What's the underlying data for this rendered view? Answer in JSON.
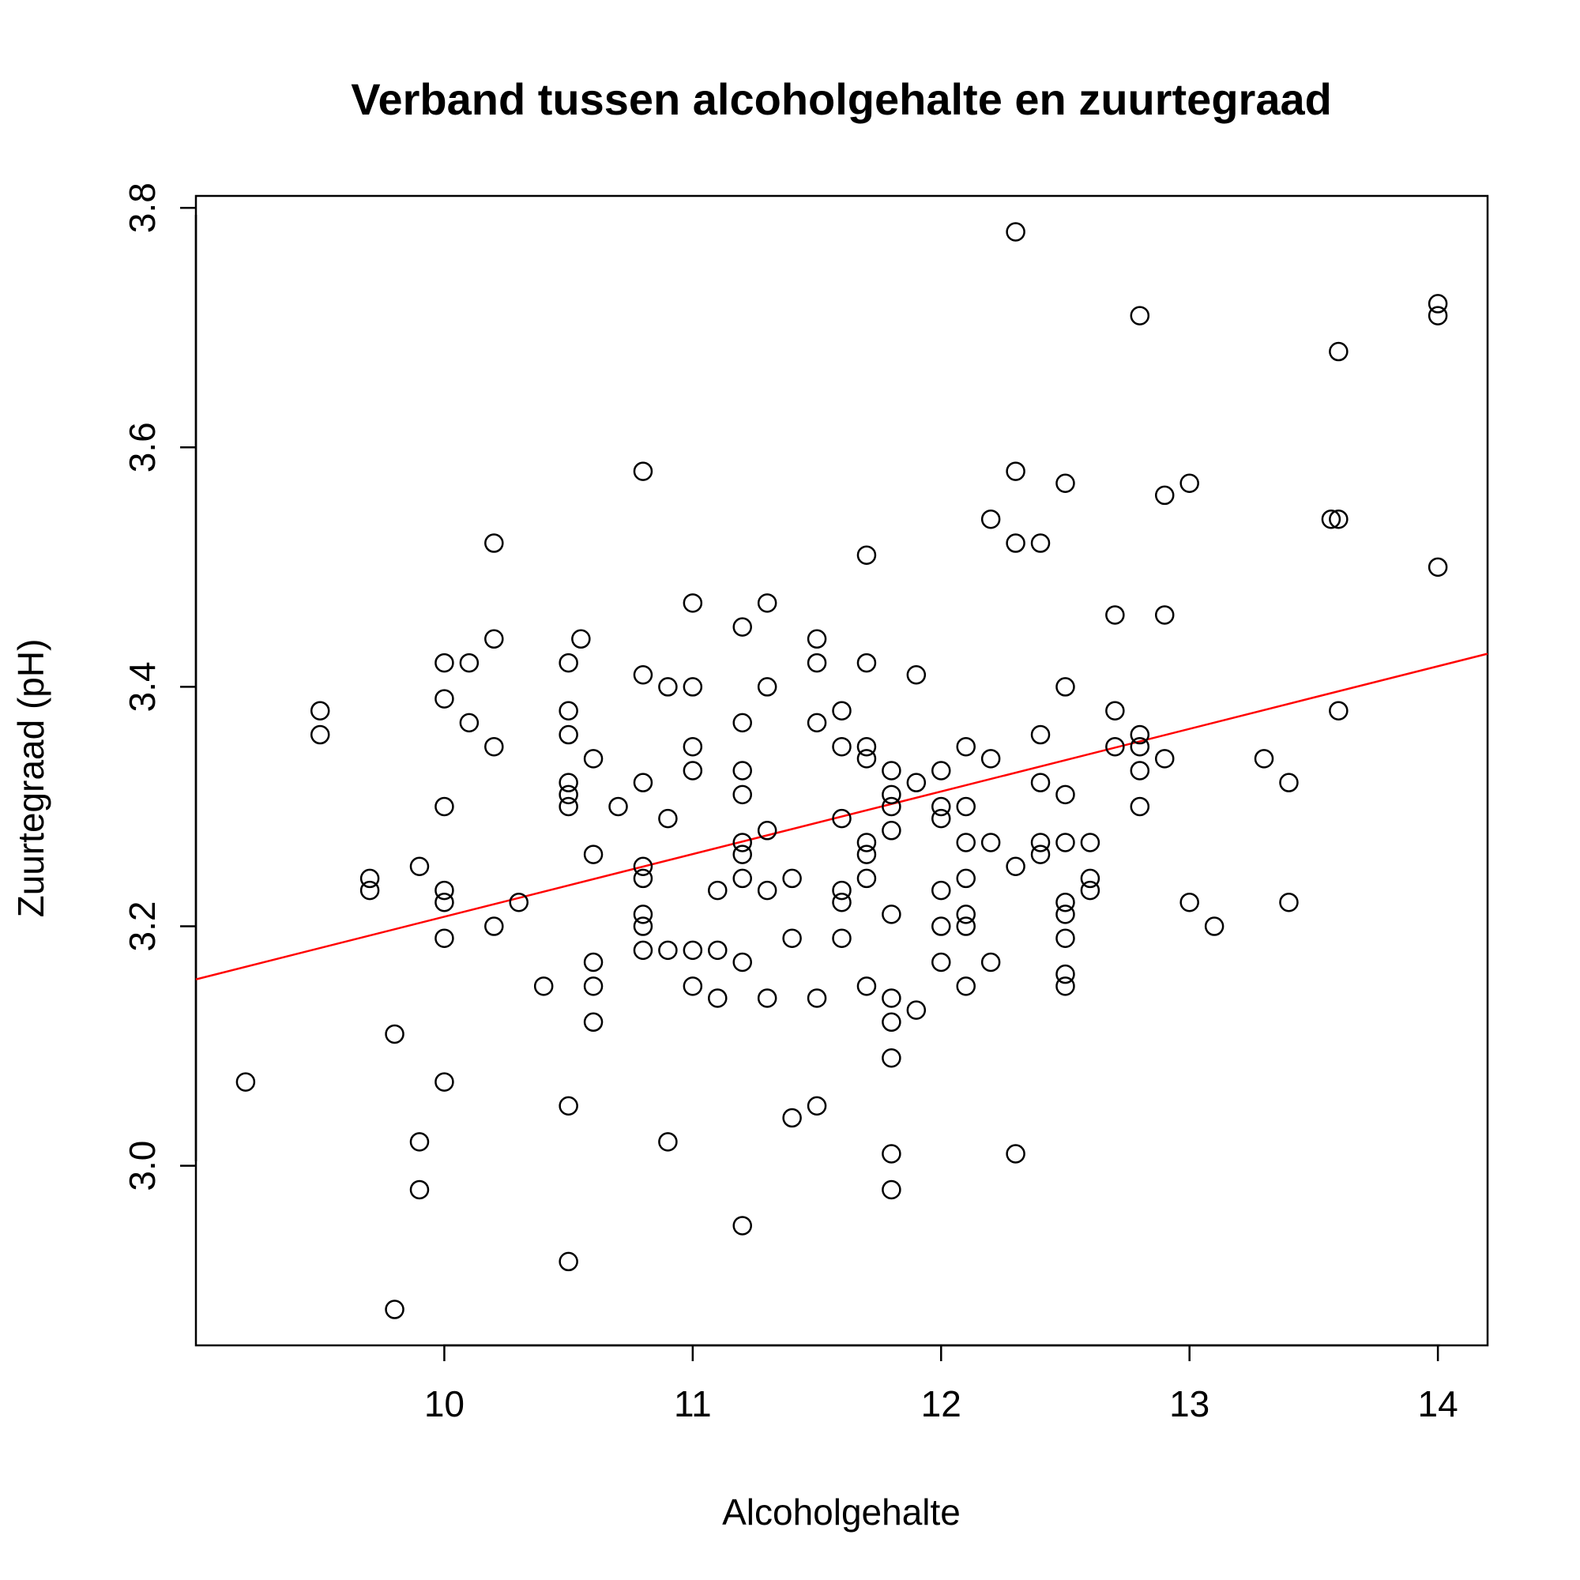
{
  "chart_data": {
    "type": "scatter",
    "title": "Verband tussen alcoholgehalte en zuurtegraad",
    "xlabel": "Alcoholgehalte",
    "ylabel": "Zuurtegraad (pH)",
    "xlim": [
      9.0,
      14.2
    ],
    "ylim": [
      2.85,
      3.81
    ],
    "xticks": [
      10,
      11,
      12,
      13,
      14
    ],
    "xtick_labels": [
      "10",
      "11",
      "12",
      "13",
      "14"
    ],
    "yticks": [
      3.0,
      3.2,
      3.4,
      3.6,
      3.8
    ],
    "ytick_labels": [
      "3.0",
      "3.2",
      "3.4",
      "3.6",
      "3.8"
    ],
    "grid": false,
    "fit_line": {
      "color": "#ff0000",
      "intercept": 2.685,
      "slope": 0.0523
    },
    "point_color": "#000000",
    "points": [
      [
        9.2,
        3.07
      ],
      [
        9.5,
        3.38
      ],
      [
        9.5,
        3.36
      ],
      [
        9.7,
        3.24
      ],
      [
        9.7,
        3.23
      ],
      [
        9.8,
        3.11
      ],
      [
        9.8,
        2.88
      ],
      [
        9.9,
        3.25
      ],
      [
        9.9,
        3.02
      ],
      [
        9.9,
        2.98
      ],
      [
        10.0,
        3.42
      ],
      [
        10.0,
        3.39
      ],
      [
        10.0,
        3.3
      ],
      [
        10.0,
        3.23
      ],
      [
        10.0,
        3.22
      ],
      [
        10.0,
        3.19
      ],
      [
        10.0,
        3.07
      ],
      [
        10.1,
        3.42
      ],
      [
        10.1,
        3.37
      ],
      [
        10.2,
        3.52
      ],
      [
        10.2,
        3.44
      ],
      [
        10.2,
        3.35
      ],
      [
        10.2,
        3.2
      ],
      [
        10.3,
        3.22
      ],
      [
        10.4,
        3.15
      ],
      [
        10.5,
        3.42
      ],
      [
        10.5,
        3.38
      ],
      [
        10.5,
        3.36
      ],
      [
        10.5,
        3.32
      ],
      [
        10.5,
        3.31
      ],
      [
        10.5,
        3.3
      ],
      [
        10.5,
        3.05
      ],
      [
        10.5,
        2.92
      ],
      [
        10.55,
        3.44
      ],
      [
        10.6,
        3.34
      ],
      [
        10.6,
        3.26
      ],
      [
        10.6,
        3.17
      ],
      [
        10.6,
        3.15
      ],
      [
        10.6,
        3.12
      ],
      [
        10.7,
        3.3
      ],
      [
        10.8,
        3.58
      ],
      [
        10.8,
        3.41
      ],
      [
        10.8,
        3.32
      ],
      [
        10.8,
        3.25
      ],
      [
        10.8,
        3.24
      ],
      [
        10.8,
        3.21
      ],
      [
        10.8,
        3.2
      ],
      [
        10.8,
        3.18
      ],
      [
        10.9,
        3.4
      ],
      [
        10.9,
        3.29
      ],
      [
        10.9,
        3.18
      ],
      [
        10.9,
        3.02
      ],
      [
        11.0,
        3.47
      ],
      [
        11.0,
        3.4
      ],
      [
        11.0,
        3.35
      ],
      [
        11.0,
        3.33
      ],
      [
        11.0,
        3.18
      ],
      [
        11.0,
        3.15
      ],
      [
        11.1,
        3.23
      ],
      [
        11.1,
        3.18
      ],
      [
        11.1,
        3.14
      ],
      [
        11.2,
        3.45
      ],
      [
        11.2,
        3.37
      ],
      [
        11.2,
        3.33
      ],
      [
        11.2,
        3.31
      ],
      [
        11.2,
        3.27
      ],
      [
        11.2,
        3.26
      ],
      [
        11.2,
        3.24
      ],
      [
        11.2,
        3.17
      ],
      [
        11.2,
        2.95
      ],
      [
        11.3,
        3.47
      ],
      [
        11.3,
        3.4
      ],
      [
        11.3,
        3.28
      ],
      [
        11.3,
        3.23
      ],
      [
        11.3,
        3.14
      ],
      [
        11.4,
        3.24
      ],
      [
        11.4,
        3.19
      ],
      [
        11.4,
        3.04
      ],
      [
        11.5,
        3.44
      ],
      [
        11.5,
        3.42
      ],
      [
        11.5,
        3.37
      ],
      [
        11.5,
        3.14
      ],
      [
        11.5,
        3.05
      ],
      [
        11.6,
        3.38
      ],
      [
        11.6,
        3.35
      ],
      [
        11.6,
        3.29
      ],
      [
        11.6,
        3.23
      ],
      [
        11.6,
        3.22
      ],
      [
        11.6,
        3.19
      ],
      [
        11.7,
        3.51
      ],
      [
        11.7,
        3.42
      ],
      [
        11.7,
        3.35
      ],
      [
        11.7,
        3.34
      ],
      [
        11.7,
        3.27
      ],
      [
        11.7,
        3.26
      ],
      [
        11.7,
        3.24
      ],
      [
        11.7,
        3.15
      ],
      [
        11.8,
        3.33
      ],
      [
        11.8,
        3.31
      ],
      [
        11.8,
        3.3
      ],
      [
        11.8,
        3.28
      ],
      [
        11.8,
        3.21
      ],
      [
        11.8,
        3.14
      ],
      [
        11.8,
        3.12
      ],
      [
        11.8,
        3.09
      ],
      [
        11.8,
        3.01
      ],
      [
        11.8,
        2.98
      ],
      [
        11.9,
        3.41
      ],
      [
        11.9,
        3.32
      ],
      [
        11.9,
        3.13
      ],
      [
        12.0,
        3.33
      ],
      [
        12.0,
        3.3
      ],
      [
        12.0,
        3.29
      ],
      [
        12.0,
        3.23
      ],
      [
        12.0,
        3.2
      ],
      [
        12.0,
        3.17
      ],
      [
        12.1,
        3.35
      ],
      [
        12.1,
        3.3
      ],
      [
        12.1,
        3.27
      ],
      [
        12.1,
        3.24
      ],
      [
        12.1,
        3.21
      ],
      [
        12.1,
        3.2
      ],
      [
        12.1,
        3.15
      ],
      [
        12.2,
        3.54
      ],
      [
        12.2,
        3.34
      ],
      [
        12.2,
        3.27
      ],
      [
        12.2,
        3.17
      ],
      [
        12.3,
        3.78
      ],
      [
        12.3,
        3.58
      ],
      [
        12.3,
        3.52
      ],
      [
        12.3,
        3.25
      ],
      [
        12.3,
        3.01
      ],
      [
        12.4,
        3.52
      ],
      [
        12.4,
        3.36
      ],
      [
        12.4,
        3.32
      ],
      [
        12.4,
        3.27
      ],
      [
        12.4,
        3.26
      ],
      [
        12.5,
        3.57
      ],
      [
        12.5,
        3.4
      ],
      [
        12.5,
        3.31
      ],
      [
        12.5,
        3.27
      ],
      [
        12.5,
        3.22
      ],
      [
        12.5,
        3.21
      ],
      [
        12.5,
        3.19
      ],
      [
        12.5,
        3.16
      ],
      [
        12.5,
        3.15
      ],
      [
        12.6,
        3.27
      ],
      [
        12.6,
        3.24
      ],
      [
        12.6,
        3.23
      ],
      [
        12.7,
        3.46
      ],
      [
        12.7,
        3.38
      ],
      [
        12.7,
        3.35
      ],
      [
        12.8,
        3.71
      ],
      [
        12.8,
        3.36
      ],
      [
        12.8,
        3.35
      ],
      [
        12.8,
        3.33
      ],
      [
        12.8,
        3.3
      ],
      [
        12.9,
        3.56
      ],
      [
        12.9,
        3.46
      ],
      [
        12.9,
        3.34
      ],
      [
        13.0,
        3.57
      ],
      [
        13.0,
        3.22
      ],
      [
        13.1,
        3.2
      ],
      [
        13.3,
        3.34
      ],
      [
        13.4,
        3.32
      ],
      [
        13.4,
        3.22
      ],
      [
        13.57,
        3.54
      ],
      [
        13.6,
        3.68
      ],
      [
        13.6,
        3.54
      ],
      [
        13.6,
        3.38
      ],
      [
        14.0,
        3.72
      ],
      [
        14.0,
        3.71
      ],
      [
        14.0,
        3.5
      ]
    ]
  }
}
